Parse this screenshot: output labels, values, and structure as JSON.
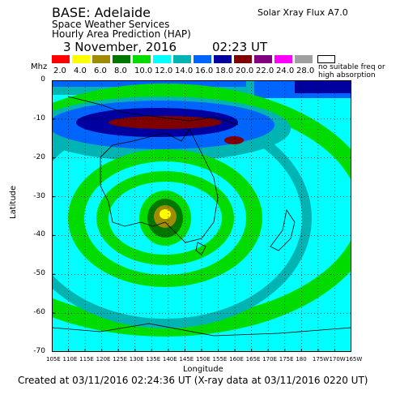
{
  "header": {
    "base": "BASE: Adelaide",
    "org": "Space Weather Services",
    "product": "Hourly Area Prediction (HAP)",
    "date": "3 November, 2016",
    "time": "02:23 UT",
    "flux": "Solar Xray Flux A7.0"
  },
  "legend": {
    "unit": "Mhz",
    "items": [
      {
        "label": "2.0",
        "color": "#ff0000"
      },
      {
        "label": "4.0",
        "color": "#ffff00"
      },
      {
        "label": "6.0",
        "color": "#a08c00"
      },
      {
        "label": "8.0",
        "color": "#007800"
      },
      {
        "label": "10.0",
        "color": "#00dc00"
      },
      {
        "label": "12.0",
        "color": "#00ffff"
      },
      {
        "label": "14.0",
        "color": "#00b4b4"
      },
      {
        "label": "16.0",
        "color": "#0064ff"
      },
      {
        "label": "18.0",
        "color": "#0000a0"
      },
      {
        "label": "20.0",
        "color": "#800000"
      },
      {
        "label": "22.0",
        "color": "#800080"
      },
      {
        "label": "24.0",
        "color": "#ff00ff"
      },
      {
        "label": "28.0",
        "color": "#a0a0a0"
      }
    ],
    "no_suitable": "no suitable freq or high absorption"
  },
  "axes": {
    "ylabel": "Latitude",
    "xlabel": "Longitude",
    "yticks": [
      "0",
      "-10",
      "-20",
      "-30",
      "-40",
      "-50",
      "-60",
      "-70"
    ],
    "xticks": [
      "105E",
      "110E",
      "115E",
      "120E",
      "125E",
      "130E",
      "135E",
      "140E",
      "145E",
      "150E",
      "155E",
      "160E",
      "165E",
      "170E",
      "175E",
      "180",
      "175W",
      "170W",
      "165W"
    ]
  },
  "map_data": {
    "lat_range": [
      -70,
      0
    ],
    "lon_range": [
      "105E",
      "165W"
    ],
    "station": "Adelaide",
    "station_lat": -34.9,
    "station_lon_e": 138.6
  },
  "footer": "Created at 03/11/2016 02:24:36 UT (X-ray data at 03/11/2016 0220 UT)"
}
